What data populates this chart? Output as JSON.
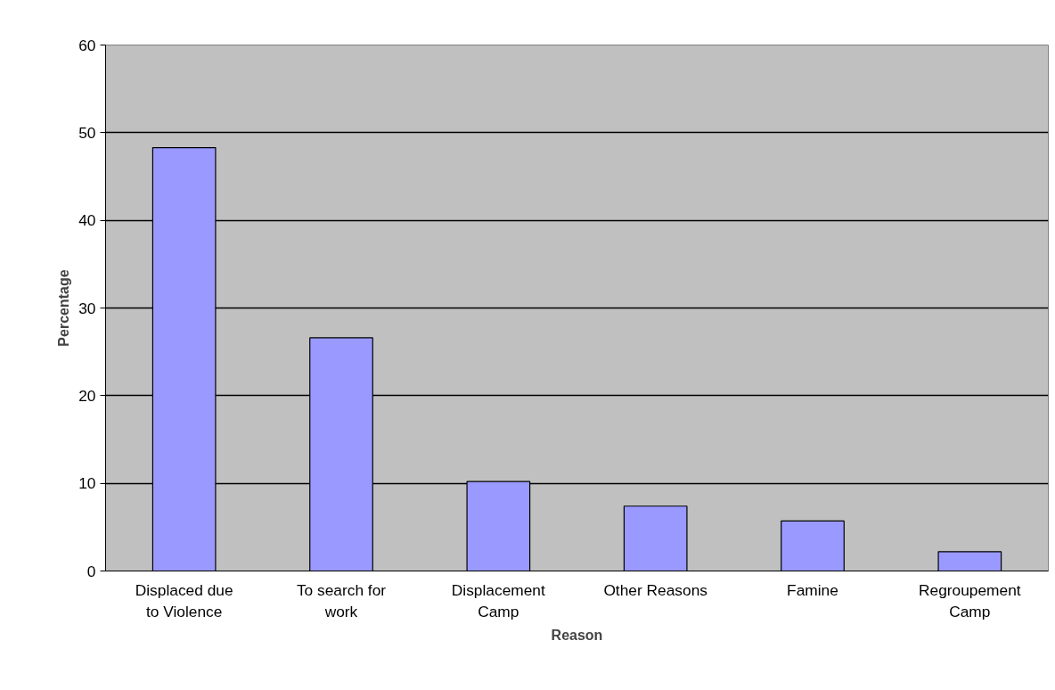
{
  "chart_data": {
    "type": "bar",
    "xlabel": "Reason",
    "ylabel": "Percentage",
    "categories": [
      "Displaced due to Violence",
      "To search for work",
      "Displacement Camp",
      "Other Reasons",
      "Famine",
      "Regroupement Camp"
    ],
    "values": [
      48.3,
      26.6,
      10.2,
      7.4,
      5.7,
      2.2
    ],
    "color": "#9999ff",
    "ylim": [
      0,
      60
    ],
    "yticks": [
      0,
      10,
      20,
      30,
      40,
      50,
      60
    ],
    "grid": "y"
  }
}
